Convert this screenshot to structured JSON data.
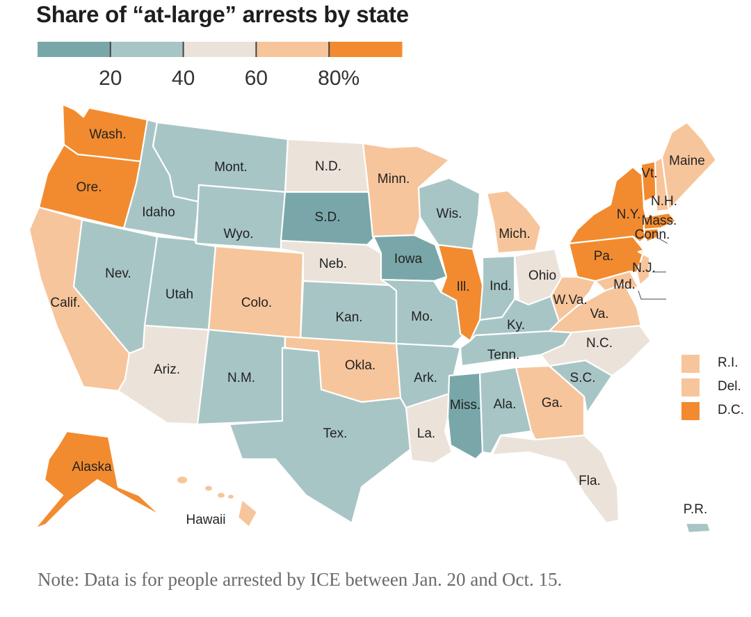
{
  "title": "Share of “at-large” arrests by state",
  "note": "Note: Data is for people arrested by ICE between Jan. 20 and Oct. 15.",
  "colors": {
    "bin_0_20": "#79a7a9",
    "bin_20_40": "#a8c5c6",
    "bin_40_60": "#ebe3da",
    "bin_60_80": "#f7c59b",
    "bin_80_100": "#f28b2f"
  },
  "legend": {
    "bins": [
      "bin_0_20",
      "bin_20_40",
      "bin_40_60",
      "bin_60_80",
      "bin_80_100"
    ],
    "ticks": [
      "20",
      "40",
      "60",
      "80%"
    ]
  },
  "chart_data": {
    "type": "choropleth",
    "title": "Share of “at-large” arrests by state",
    "value_unit": "%",
    "bins": [
      {
        "key": "bin_0_20",
        "range": [
          0,
          20
        ]
      },
      {
        "key": "bin_20_40",
        "range": [
          20,
          40
        ]
      },
      {
        "key": "bin_40_60",
        "range": [
          40,
          60
        ]
      },
      {
        "key": "bin_60_80",
        "range": [
          60,
          80
        ]
      },
      {
        "key": "bin_80_100",
        "range": [
          80,
          100
        ]
      }
    ],
    "states": [
      {
        "label": "Wash.",
        "bin": "bin_80_100"
      },
      {
        "label": "Ore.",
        "bin": "bin_80_100"
      },
      {
        "label": "Calif.",
        "bin": "bin_60_80"
      },
      {
        "label": "Idaho",
        "bin": "bin_20_40"
      },
      {
        "label": "Nev.",
        "bin": "bin_20_40"
      },
      {
        "label": "Mont.",
        "bin": "bin_20_40"
      },
      {
        "label": "Wyo.",
        "bin": "bin_20_40"
      },
      {
        "label": "Utah",
        "bin": "bin_20_40"
      },
      {
        "label": "Ariz.",
        "bin": "bin_40_60"
      },
      {
        "label": "Colo.",
        "bin": "bin_60_80"
      },
      {
        "label": "N.M.",
        "bin": "bin_20_40"
      },
      {
        "label": "N.D.",
        "bin": "bin_40_60"
      },
      {
        "label": "S.D.",
        "bin": "bin_0_20"
      },
      {
        "label": "Neb.",
        "bin": "bin_40_60"
      },
      {
        "label": "Kan.",
        "bin": "bin_20_40"
      },
      {
        "label": "Okla.",
        "bin": "bin_60_80"
      },
      {
        "label": "Tex.",
        "bin": "bin_20_40"
      },
      {
        "label": "Minn.",
        "bin": "bin_60_80"
      },
      {
        "label": "Iowa",
        "bin": "bin_0_20"
      },
      {
        "label": "Mo.",
        "bin": "bin_20_40"
      },
      {
        "label": "Ark.",
        "bin": "bin_20_40"
      },
      {
        "label": "La.",
        "bin": "bin_40_60"
      },
      {
        "label": "Wis.",
        "bin": "bin_20_40"
      },
      {
        "label": "Ill.",
        "bin": "bin_80_100"
      },
      {
        "label": "Mich.",
        "bin": "bin_60_80"
      },
      {
        "label": "Ind.",
        "bin": "bin_20_40"
      },
      {
        "label": "Ohio",
        "bin": "bin_40_60"
      },
      {
        "label": "Ky.",
        "bin": "bin_20_40"
      },
      {
        "label": "Tenn.",
        "bin": "bin_20_40"
      },
      {
        "label": "Miss.",
        "bin": "bin_0_20"
      },
      {
        "label": "Ala.",
        "bin": "bin_20_40"
      },
      {
        "label": "Ga.",
        "bin": "bin_60_80"
      },
      {
        "label": "Fla.",
        "bin": "bin_40_60"
      },
      {
        "label": "S.C.",
        "bin": "bin_20_40"
      },
      {
        "label": "N.C.",
        "bin": "bin_40_60"
      },
      {
        "label": "Va.",
        "bin": "bin_60_80"
      },
      {
        "label": "W.Va.",
        "bin": "bin_60_80"
      },
      {
        "label": "Md.",
        "bin": "bin_60_80"
      },
      {
        "label": "Pa.",
        "bin": "bin_80_100"
      },
      {
        "label": "N.J.",
        "bin": "bin_60_80"
      },
      {
        "label": "N.Y.",
        "bin": "bin_80_100"
      },
      {
        "label": "Conn.",
        "bin": "bin_80_100"
      },
      {
        "label": "Mass.",
        "bin": "bin_80_100"
      },
      {
        "label": "Vt.",
        "bin": "bin_80_100"
      },
      {
        "label": "N.H.",
        "bin": "bin_60_80"
      },
      {
        "label": "Maine",
        "bin": "bin_60_80"
      },
      {
        "label": "Alaska",
        "bin": "bin_80_100"
      },
      {
        "label": "Hawaii",
        "bin": "bin_60_80"
      },
      {
        "label": "P.R.",
        "bin": "bin_20_40"
      },
      {
        "label": "R.I.",
        "bin": "bin_60_80"
      },
      {
        "label": "Del.",
        "bin": "bin_60_80"
      },
      {
        "label": "D.C.",
        "bin": "bin_80_100"
      }
    ]
  }
}
